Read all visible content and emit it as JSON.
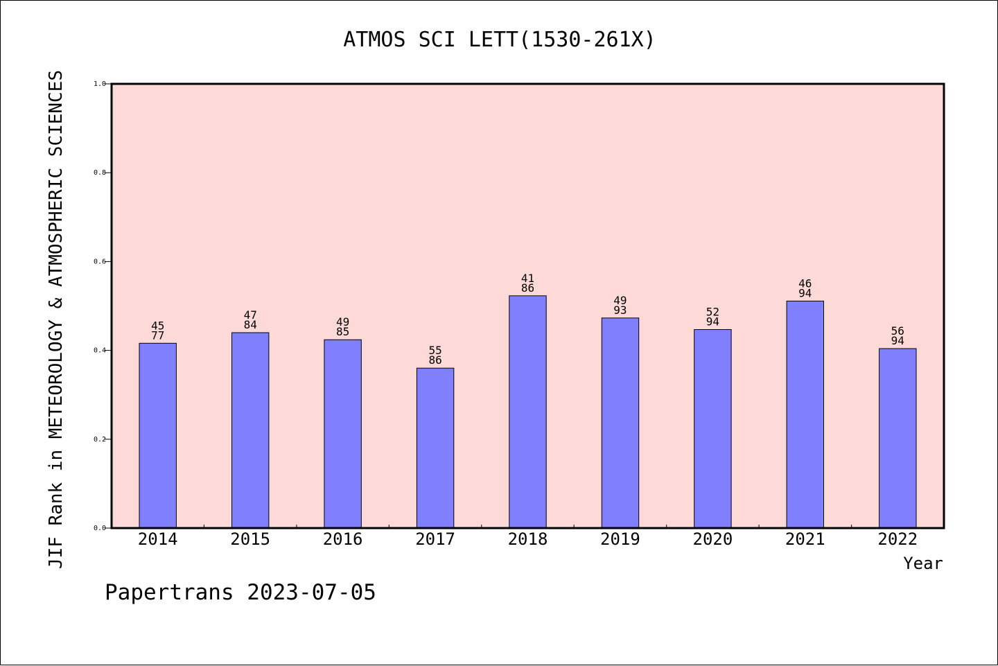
{
  "chart_data": {
    "type": "bar",
    "title": "ATMOS SCI LETT(1530-261X)",
    "xlabel": "Year",
    "ylabel": "JIF Rank in METEOROLOGY & ATMOSPHERIC SCIENCES",
    "ylim": [
      0.0,
      1.0
    ],
    "yticks": [
      "0.0",
      "0.2",
      "0.4",
      "0.6",
      "0.8",
      "1.0"
    ],
    "categories": [
      "2014",
      "2015",
      "2016",
      "2017",
      "2018",
      "2019",
      "2020",
      "2021",
      "2022"
    ],
    "values": [
      0.416,
      0.44,
      0.424,
      0.36,
      0.523,
      0.473,
      0.447,
      0.511,
      0.404
    ],
    "rank_labels": [
      [
        "45",
        "77"
      ],
      [
        "47",
        "84"
      ],
      [
        "49",
        "85"
      ],
      [
        "55",
        "86"
      ],
      [
        "41",
        "86"
      ],
      [
        "49",
        "93"
      ],
      [
        "52",
        "94"
      ],
      [
        "46",
        "94"
      ],
      [
        "56",
        "94"
      ]
    ],
    "grid": false,
    "plot_background": "#fddad7",
    "bar_color": "#8080ff"
  },
  "footer": "Papertrans 2023-07-05"
}
